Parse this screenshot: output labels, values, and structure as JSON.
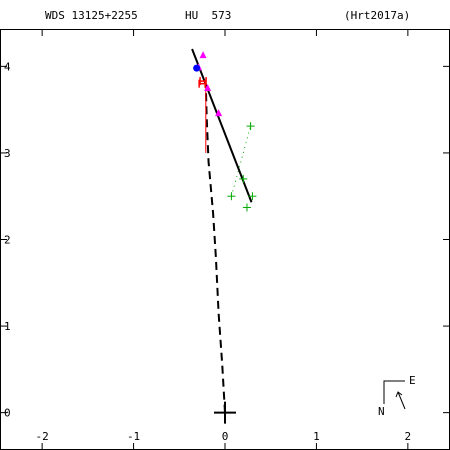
{
  "header": {
    "left": "WDS 13125+2255",
    "middle": "HU  573",
    "right": "(Hrt2017a)"
  },
  "compass": {
    "north": "N",
    "east": "E"
  },
  "chart_data": {
    "type": "scatter",
    "title": "",
    "xlabel": "",
    "ylabel": "",
    "xlim": [
      -2.45,
      2.45
    ],
    "ylim": [
      -0.42,
      4.42
    ],
    "x_ticks": [
      -2,
      -1,
      0,
      1,
      2
    ],
    "y_ticks": [
      0,
      1,
      2,
      3,
      4
    ],
    "x_tick_labels": [
      "-2",
      "-1",
      "0",
      "1",
      "2"
    ],
    "y_tick_labels": [
      "0",
      "1",
      "2",
      "3",
      "4"
    ],
    "grid": false,
    "primary_star": {
      "x": 0.0,
      "y": 0.0
    },
    "orbit_dashed": [
      [
        0.0,
        0.0
      ],
      [
        -0.03,
        0.55
      ],
      [
        -0.07,
        1.15
      ],
      [
        -0.1,
        1.8
      ],
      [
        -0.13,
        2.3
      ],
      [
        -0.18,
        2.9
      ],
      [
        -0.2,
        3.4
      ],
      [
        -0.21,
        3.78
      ]
    ],
    "series": [
      {
        "marker": "plus",
        "color": "#00aa00",
        "points": [
          [
            0.28,
            3.31
          ],
          [
            0.2,
            2.7
          ],
          [
            0.3,
            2.5
          ],
          [
            0.07,
            2.5
          ],
          [
            0.24,
            2.37
          ]
        ]
      },
      {
        "marker": "triangle",
        "color": "#ff00ff",
        "points": [
          [
            -0.24,
            4.13
          ],
          [
            -0.29,
            3.99
          ],
          [
            -0.19,
            3.75
          ],
          [
            -0.07,
            3.46
          ]
        ]
      },
      {
        "marker": "H",
        "color": "#ff0000",
        "points": [
          [
            -0.25,
            3.8
          ],
          [
            -0.24,
            3.83
          ]
        ]
      },
      {
        "marker": "dot",
        "color": "#0000ff",
        "points": [
          [
            -0.31,
            3.98
          ]
        ]
      }
    ],
    "residual_lines": [
      [
        [
          -0.21,
          3.78
        ],
        [
          -0.21,
          3.0
        ]
      ]
    ],
    "fit_line": [
      [
        -0.36,
        4.2
      ],
      [
        0.29,
        2.43
      ]
    ],
    "fit_dotted": [
      [
        0.07,
        2.5
      ],
      [
        0.28,
        3.31
      ]
    ]
  }
}
